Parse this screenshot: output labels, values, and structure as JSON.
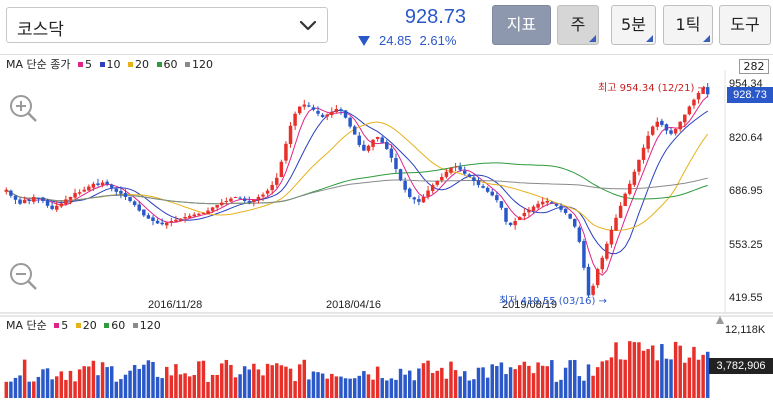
{
  "header": {
    "market_name": "코스닥",
    "price": "928.73",
    "change": "24.85",
    "change_pct": "2.61%",
    "buttons": {
      "indicator": "지표",
      "week": "주",
      "min5": "5분",
      "tick1": "1틱",
      "tools": "도구"
    }
  },
  "price_legend": {
    "prefix": "MA 단순 종가",
    "periods": [
      {
        "label": "5",
        "color": "#e0238a"
      },
      {
        "label": "10",
        "color": "#2b3fbf"
      },
      {
        "label": "20",
        "color": "#e6b21a"
      },
      {
        "label": "60",
        "color": "#2e9a3c"
      },
      {
        "label": "120",
        "color": "#8a8a8a"
      }
    ]
  },
  "volume_legend": {
    "prefix": "MA 단순",
    "periods": [
      {
        "label": "5",
        "color": "#e0238a"
      },
      {
        "label": "20",
        "color": "#e6b21a"
      },
      {
        "label": "60",
        "color": "#2e9a3c"
      },
      {
        "label": "120",
        "color": "#8a8a8a"
      }
    ]
  },
  "right_axis": {
    "top_box": "282",
    "current_box": "928.73",
    "labels": [
      "954.34",
      "820.64",
      "686.95",
      "553.25",
      "419.55"
    ],
    "volume_top": "12,118K",
    "volume_current": "3,782,906"
  },
  "x_axis": [
    "2016/11/28",
    "2018/04/16",
    "2019/08/19"
  ],
  "annotations": {
    "high": "최고 954.34 (12/21) →",
    "low": "최저 419.55 (03/16) →"
  },
  "colors": {
    "up": "#e8302a",
    "down": "#2b58c8",
    "accent": "#2b58c8"
  },
  "chart_data": {
    "type": "candlestick",
    "title": "",
    "y_range": [
      419.55,
      954.34
    ],
    "x_ticks": [
      "2016/11/28",
      "2018/04/16",
      "2019/08/19"
    ],
    "close_approx": [
      690,
      675,
      665,
      655,
      665,
      662,
      672,
      668,
      662,
      650,
      642,
      650,
      656,
      666,
      672,
      682,
      684,
      690,
      698,
      705,
      702,
      708,
      704,
      695,
      685,
      680,
      672,
      662,
      652,
      638,
      626,
      618,
      612,
      606,
      604,
      608,
      612,
      615,
      618,
      622,
      625,
      628,
      630,
      632,
      638,
      646,
      652,
      658,
      662,
      668,
      672,
      668,
      662,
      660,
      665,
      672,
      678,
      688,
      702,
      720,
      760,
      805,
      850,
      880,
      898,
      903,
      898,
      890,
      880,
      872,
      878,
      885,
      892,
      888,
      870,
      848,
      828,
      802,
      788,
      800,
      815,
      822,
      808,
      792,
      770,
      742,
      714,
      690,
      672,
      666,
      660,
      672,
      688,
      702,
      712,
      722,
      735,
      745,
      748,
      740,
      730,
      722,
      712,
      702,
      695,
      685,
      676,
      664,
      645,
      610,
      602,
      612,
      622,
      632,
      640,
      648,
      655,
      660,
      662,
      656,
      650,
      640,
      632,
      618,
      598,
      560,
      495,
      426,
      450,
      492,
      520,
      555,
      590,
      620,
      650,
      680,
      705,
      735,
      765,
      795,
      825,
      848,
      860,
      852,
      838,
      830,
      842,
      860,
      878,
      898,
      915,
      932,
      945,
      928.73
    ],
    "volume_scale_max_k": 12118,
    "volume_current": 3782906
  }
}
